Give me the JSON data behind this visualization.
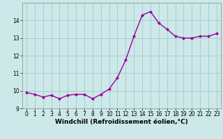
{
  "x": [
    0,
    1,
    2,
    3,
    4,
    5,
    6,
    7,
    8,
    9,
    10,
    11,
    12,
    13,
    14,
    15,
    16,
    17,
    18,
    19,
    20,
    21,
    22,
    23
  ],
  "y": [
    9.9,
    9.8,
    9.65,
    9.75,
    9.55,
    9.75,
    9.8,
    9.8,
    9.55,
    9.8,
    10.1,
    10.75,
    11.75,
    13.1,
    14.3,
    14.5,
    13.85,
    13.5,
    13.1,
    13.0,
    13.0,
    13.1,
    13.1,
    13.25
  ],
  "line_color": "#990099",
  "marker": "D",
  "marker_size": 2.0,
  "bg_color": "#cce8e8",
  "grid_color": "#aacfcf",
  "xlabel": "Windchill (Refroidissement éolien,°C)",
  "ylabel": "",
  "xlim": [
    -0.5,
    23.5
  ],
  "ylim": [
    9.0,
    15.0
  ],
  "yticks": [
    9,
    10,
    11,
    12,
    13,
    14
  ],
  "xticks": [
    0,
    1,
    2,
    3,
    4,
    5,
    6,
    7,
    8,
    9,
    10,
    11,
    12,
    13,
    14,
    15,
    16,
    17,
    18,
    19,
    20,
    21,
    22,
    23
  ],
  "tick_label_size": 5.5,
  "xlabel_size": 6.5,
  "line_width": 1.0
}
